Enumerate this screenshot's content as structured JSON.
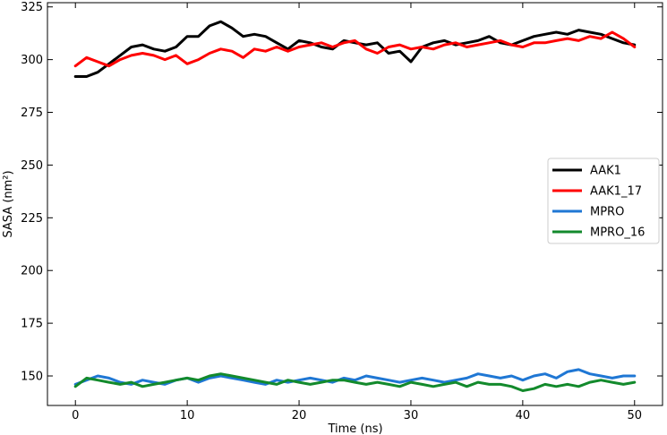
{
  "chart_data": {
    "type": "line",
    "title": "",
    "xlabel": "Time (ns)",
    "ylabel": "SASA (nm²)",
    "xlim": [
      -2.5,
      52.5
    ],
    "ylim": [
      136,
      327
    ],
    "xticks": [
      0,
      10,
      20,
      30,
      40,
      50
    ],
    "xtick_labels": [
      "0",
      "10",
      "20",
      "30",
      "40",
      "50"
    ],
    "yticks": [
      150,
      175,
      200,
      225,
      250,
      275,
      300,
      325
    ],
    "ytick_labels": [
      "150",
      "175",
      "200",
      "225",
      "250",
      "275",
      "300",
      "325"
    ],
    "grid": false,
    "legend_position": "center-right",
    "series": [
      {
        "name": "AAK1",
        "color": "#000000",
        "x": [
          0,
          1,
          2,
          3,
          4,
          5,
          6,
          7,
          8,
          9,
          10,
          11,
          12,
          13,
          14,
          15,
          16,
          17,
          18,
          19,
          20,
          21,
          22,
          23,
          24,
          25,
          26,
          27,
          28,
          29,
          30,
          31,
          32,
          33,
          34,
          35,
          36,
          37,
          38,
          39,
          40,
          41,
          42,
          43,
          44,
          45,
          46,
          47,
          48,
          49,
          50
        ],
        "y": [
          292,
          292,
          294,
          298,
          302,
          306,
          307,
          305,
          304,
          306,
          311,
          311,
          316,
          318,
          315,
          311,
          312,
          311,
          308,
          305,
          309,
          308,
          306,
          305,
          309,
          308,
          307,
          308,
          303,
          304,
          299,
          306,
          308,
          309,
          307,
          308,
          309,
          311,
          308,
          307,
          309,
          311,
          312,
          313,
          312,
          314,
          313,
          312,
          310,
          308,
          307
        ]
      },
      {
        "name": "AAK1_17",
        "color": "#ff0000",
        "x": [
          0,
          1,
          2,
          3,
          4,
          5,
          6,
          7,
          8,
          9,
          10,
          11,
          12,
          13,
          14,
          15,
          16,
          17,
          18,
          19,
          20,
          21,
          22,
          23,
          24,
          25,
          26,
          27,
          28,
          29,
          30,
          31,
          32,
          33,
          34,
          35,
          36,
          37,
          38,
          39,
          40,
          41,
          42,
          43,
          44,
          45,
          46,
          47,
          48,
          49,
          50
        ],
        "y": [
          297,
          301,
          299,
          297,
          300,
          302,
          303,
          302,
          300,
          302,
          298,
          300,
          303,
          305,
          304,
          301,
          305,
          304,
          306,
          304,
          306,
          307,
          308,
          306,
          308,
          309,
          305,
          303,
          306,
          307,
          305,
          306,
          305,
          307,
          308,
          306,
          307,
          308,
          309,
          307,
          306,
          308,
          308,
          309,
          310,
          309,
          311,
          310,
          313,
          310,
          306
        ]
      },
      {
        "name": "MPRO",
        "color": "#1f77d4",
        "x": [
          0,
          1,
          2,
          3,
          4,
          5,
          6,
          7,
          8,
          9,
          10,
          11,
          12,
          13,
          14,
          15,
          16,
          17,
          18,
          19,
          20,
          21,
          22,
          23,
          24,
          25,
          26,
          27,
          28,
          29,
          30,
          31,
          32,
          33,
          34,
          35,
          36,
          37,
          38,
          39,
          40,
          41,
          42,
          43,
          44,
          45,
          46,
          47,
          48,
          49,
          50
        ],
        "y": [
          146,
          148,
          150,
          149,
          147,
          146,
          148,
          147,
          146,
          148,
          149,
          147,
          149,
          150,
          149,
          148,
          147,
          146,
          148,
          147,
          148,
          149,
          148,
          147,
          149,
          148,
          150,
          149,
          148,
          147,
          148,
          149,
          148,
          147,
          148,
          149,
          151,
          150,
          149,
          150,
          148,
          150,
          151,
          149,
          152,
          153,
          151,
          150,
          149,
          150,
          150
        ]
      },
      {
        "name": "MPRO_16",
        "color": "#138a2c",
        "x": [
          0,
          1,
          2,
          3,
          4,
          5,
          6,
          7,
          8,
          9,
          10,
          11,
          12,
          13,
          14,
          15,
          16,
          17,
          18,
          19,
          20,
          21,
          22,
          23,
          24,
          25,
          26,
          27,
          28,
          29,
          30,
          31,
          32,
          33,
          34,
          35,
          36,
          37,
          38,
          39,
          40,
          41,
          42,
          43,
          44,
          45,
          46,
          47,
          48,
          49,
          50
        ],
        "y": [
          145,
          149,
          148,
          147,
          146,
          147,
          145,
          146,
          147,
          148,
          149,
          148,
          150,
          151,
          150,
          149,
          148,
          147,
          146,
          148,
          147,
          146,
          147,
          148,
          148,
          147,
          146,
          147,
          146,
          145,
          147,
          146,
          145,
          146,
          147,
          145,
          147,
          146,
          146,
          145,
          143,
          144,
          146,
          145,
          146,
          145,
          147,
          148,
          147,
          146,
          147
        ]
      }
    ]
  }
}
